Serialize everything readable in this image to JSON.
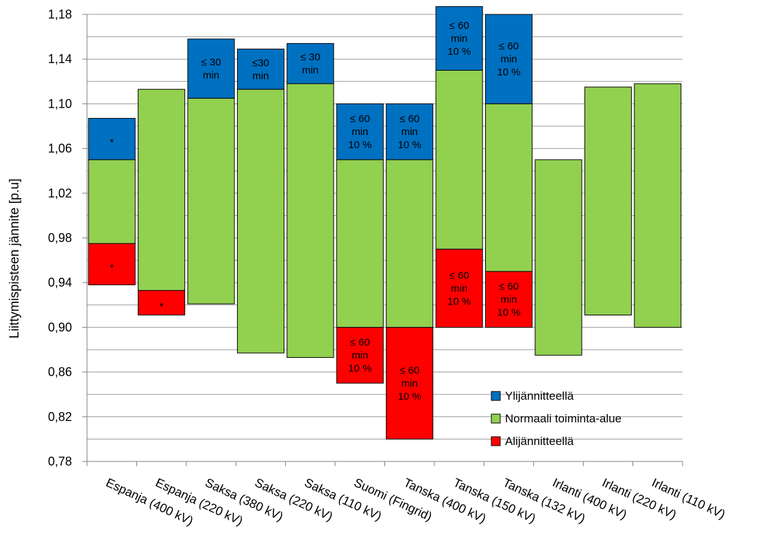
{
  "chart_data": {
    "type": "bar",
    "subtype": "floating-stacked-range",
    "ylabel": "Liittymispisteen jännite [p.u]",
    "ylim": [
      0.78,
      1.18
    ],
    "yticks": [
      "0,78",
      "0,82",
      "0,86",
      "0,90",
      "0,94",
      "0,98",
      "1,02",
      "1,06",
      "1,10",
      "1,14",
      "1,18"
    ],
    "grid": true,
    "legend_position": "bottom-right",
    "categories": [
      "Espanja (400 kV)",
      "Espanja (220 kV)",
      "Saksa (380 kV)",
      "Saksa (220 kV)",
      "Saksa (110 kV)",
      "Suomi (Fingrid)",
      "Tanska (400 kV)",
      "Tanska (150 kV)",
      "Tanska (132 kV)",
      "Irlanti (400 kV)",
      "Irlanti (220 kV)",
      "Irlanti (110 kV)"
    ],
    "series": [
      {
        "name": "Alijännitteellä",
        "color": "#ff0000",
        "ranges": [
          [
            0.938,
            0.975
          ],
          [
            0.911,
            0.933
          ],
          null,
          null,
          null,
          [
            0.85,
            0.9
          ],
          [
            0.8,
            0.9
          ],
          [
            0.9,
            0.97
          ],
          [
            0.9,
            0.95
          ],
          null,
          null,
          null
        ],
        "labels": [
          "*",
          "*",
          "",
          "",
          "",
          "≤ 60\nmin\n10 %",
          "≤ 60\nmin\n10 %",
          "≤ 60\nmin\n10 %",
          "≤ 60\nmin\n10 %",
          "",
          "",
          ""
        ]
      },
      {
        "name": "Normaali toiminta-alue",
        "color": "#92d050",
        "ranges": [
          [
            0.975,
            1.05
          ],
          [
            0.933,
            1.113
          ],
          [
            0.921,
            1.105
          ],
          [
            0.877,
            1.113
          ],
          [
            0.873,
            1.118
          ],
          [
            0.9,
            1.05
          ],
          [
            0.9,
            1.05
          ],
          [
            0.97,
            1.13
          ],
          [
            0.95,
            1.1
          ],
          [
            0.875,
            1.05
          ],
          [
            0.911,
            1.115
          ],
          [
            0.9,
            1.118
          ]
        ],
        "labels": [
          "",
          "",
          "",
          "",
          "",
          "",
          "",
          "",
          "",
          "",
          "",
          ""
        ]
      },
      {
        "name": "Ylijännitteellä",
        "color": "#0070c0",
        "ranges": [
          [
            1.05,
            1.087
          ],
          null,
          [
            1.105,
            1.158
          ],
          [
            1.113,
            1.149
          ],
          [
            1.118,
            1.154
          ],
          [
            1.05,
            1.1
          ],
          [
            1.05,
            1.1
          ],
          [
            1.13,
            1.187
          ],
          [
            1.1,
            1.18
          ],
          null,
          null,
          null
        ],
        "labels": [
          "*",
          "",
          "≤ 30\nmin",
          "≤30\nmin",
          "≤ 30\nmin",
          "≤ 60\nmin\n10 %",
          "≤ 60\nmin\n10 %",
          "≤ 60\nmin\n10 %",
          "≤ 60\nmin\n10 %",
          "",
          "",
          ""
        ]
      }
    ],
    "legend": [
      {
        "label": "Ylijännitteellä",
        "color": "#0070c0"
      },
      {
        "label": "Normaali toiminta-alue",
        "color": "#92d050"
      },
      {
        "label": "Alijännitteellä",
        "color": "#ff0000"
      }
    ]
  }
}
